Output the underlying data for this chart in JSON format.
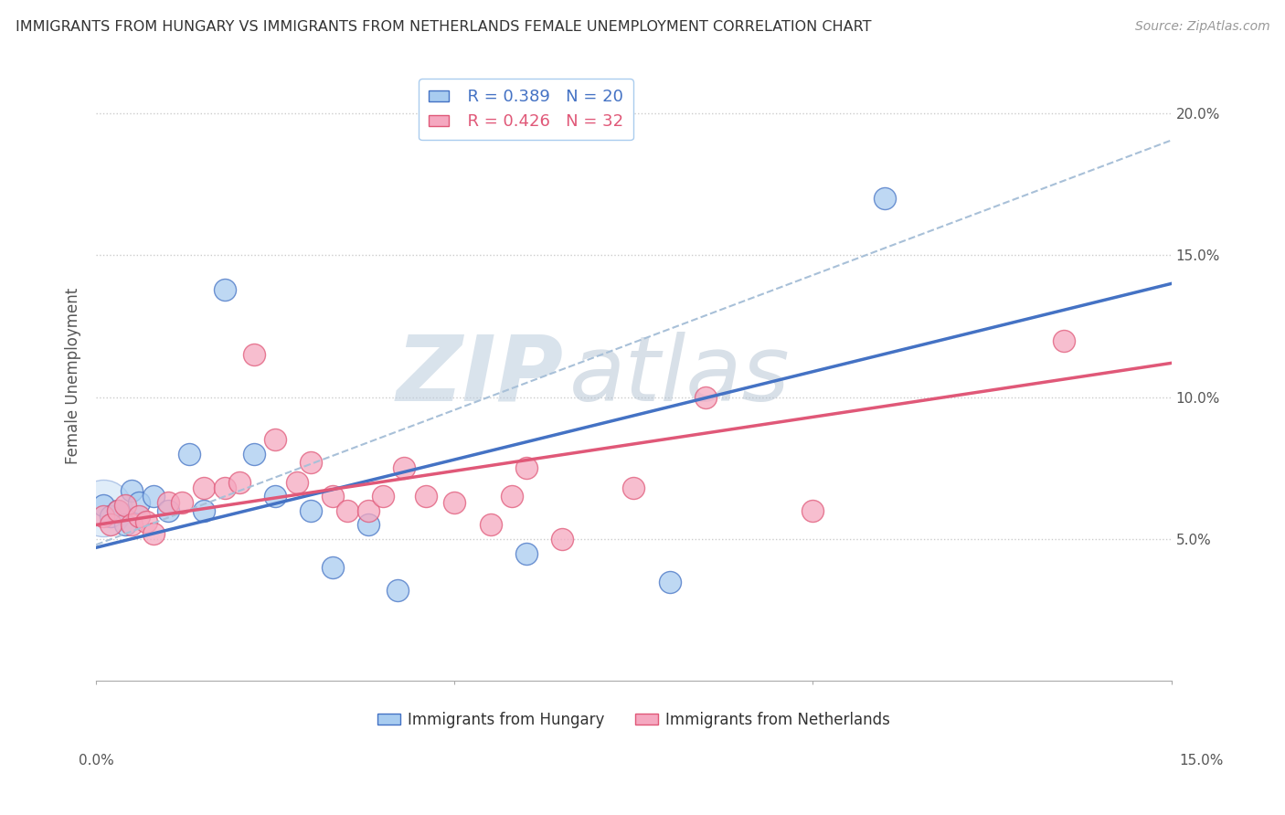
{
  "title": "IMMIGRANTS FROM HUNGARY VS IMMIGRANTS FROM NETHERLANDS FEMALE UNEMPLOYMENT CORRELATION CHART",
  "source": "Source: ZipAtlas.com",
  "ylabel": "Female Unemployment",
  "legend_hungary": "Immigrants from Hungary",
  "legend_netherlands": "Immigrants from Netherlands",
  "R_hungary": 0.389,
  "N_hungary": 20,
  "R_netherlands": 0.426,
  "N_netherlands": 32,
  "color_hungary": "#A8CCF0",
  "color_netherlands": "#F5A8C0",
  "color_hungary_line": "#4472C4",
  "color_netherlands_line": "#E05878",
  "color_dashed": "#A8C0D8",
  "xlim": [
    0.0,
    0.15
  ],
  "ylim": [
    0.0,
    0.215
  ],
  "x_ticks": [
    0.0,
    0.05,
    0.1,
    0.15
  ],
  "x_tick_labels": [
    "0.0%",
    "",
    "",
    "15.0%"
  ],
  "y_ticks": [
    0.05,
    0.1,
    0.15,
    0.2
  ],
  "y_tick_labels": [
    "5.0%",
    "10.0%",
    "15.0%",
    "20.0%"
  ],
  "hungary_x": [
    0.001,
    0.002,
    0.003,
    0.004,
    0.005,
    0.006,
    0.008,
    0.01,
    0.013,
    0.015,
    0.018,
    0.022,
    0.025,
    0.03,
    0.033,
    0.038,
    0.042,
    0.06,
    0.08,
    0.11
  ],
  "hungary_y": [
    0.062,
    0.058,
    0.06,
    0.055,
    0.067,
    0.063,
    0.065,
    0.06,
    0.08,
    0.06,
    0.138,
    0.08,
    0.065,
    0.06,
    0.04,
    0.055,
    0.032,
    0.045,
    0.035,
    0.17
  ],
  "netherlands_x": [
    0.001,
    0.002,
    0.003,
    0.004,
    0.005,
    0.006,
    0.007,
    0.008,
    0.01,
    0.012,
    0.015,
    0.018,
    0.02,
    0.022,
    0.025,
    0.028,
    0.03,
    0.033,
    0.035,
    0.038,
    0.04,
    0.043,
    0.046,
    0.05,
    0.055,
    0.058,
    0.06,
    0.065,
    0.075,
    0.085,
    0.1,
    0.135
  ],
  "netherlands_y": [
    0.058,
    0.055,
    0.06,
    0.062,
    0.055,
    0.058,
    0.056,
    0.052,
    0.063,
    0.063,
    0.068,
    0.068,
    0.07,
    0.115,
    0.085,
    0.07,
    0.077,
    0.065,
    0.06,
    0.06,
    0.065,
    0.075,
    0.065,
    0.063,
    0.055,
    0.065,
    0.075,
    0.05,
    0.068,
    0.1,
    0.06,
    0.12
  ],
  "watermark_zip": "ZIP",
  "watermark_atlas": "atlas",
  "background_color": "#FFFFFF",
  "grid_color": "#CCCCCC",
  "regression_hungary_m": 0.62,
  "regression_hungary_b": 0.047,
  "regression_netherlands_m": 0.38,
  "regression_netherlands_b": 0.055,
  "dashed_m": 0.95,
  "dashed_b": 0.048
}
